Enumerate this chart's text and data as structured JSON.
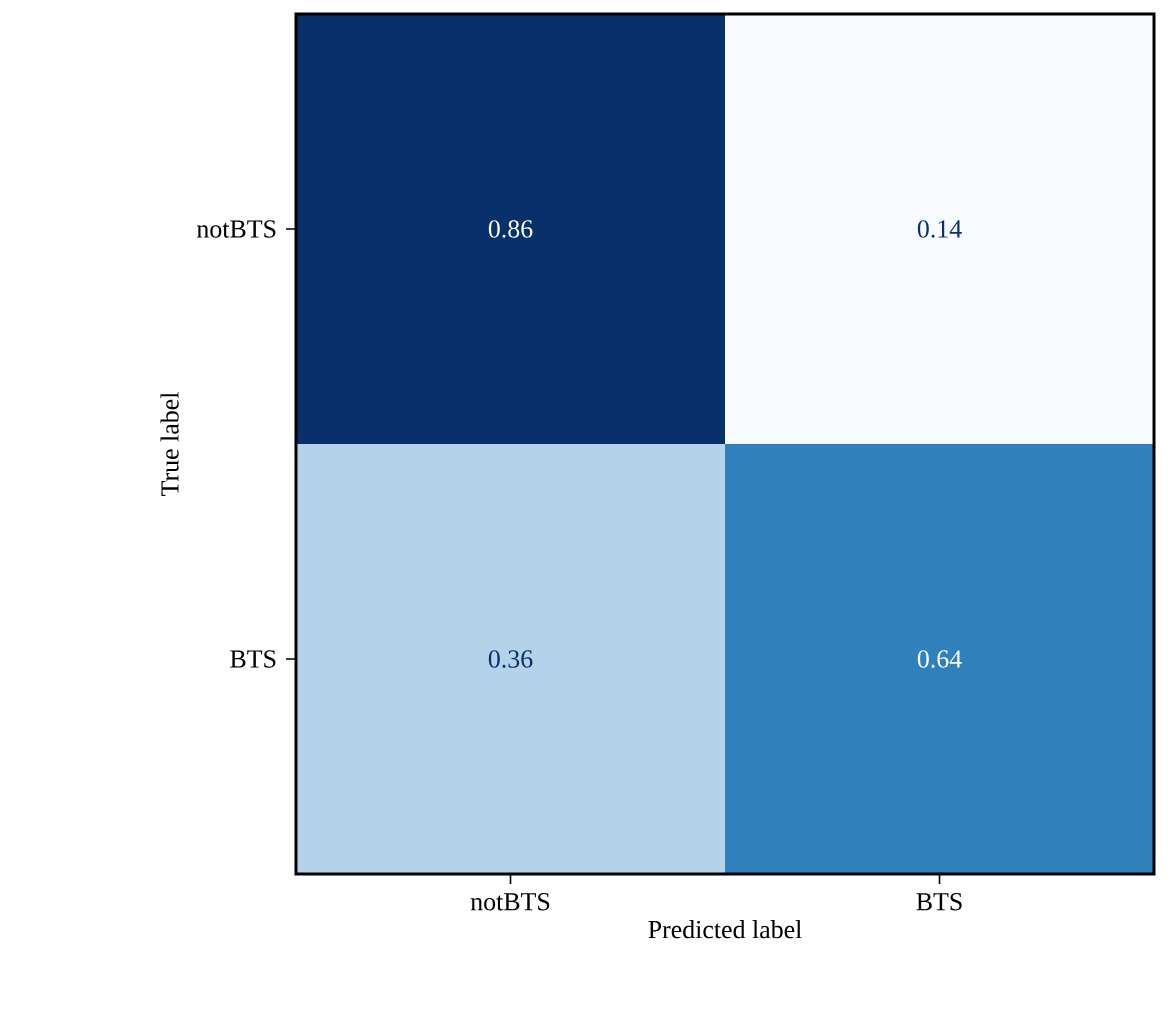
{
  "chart_data": {
    "type": "heatmap",
    "xlabel": "Predicted label",
    "ylabel": "True label",
    "categories": [
      "notBTS",
      "BTS"
    ],
    "data_labels": true,
    "y_categories": [
      "notBTS",
      "BTS"
    ],
    "cells": [
      [
        0.86,
        0.14
      ],
      [
        0.36,
        0.64
      ]
    ]
  }
}
